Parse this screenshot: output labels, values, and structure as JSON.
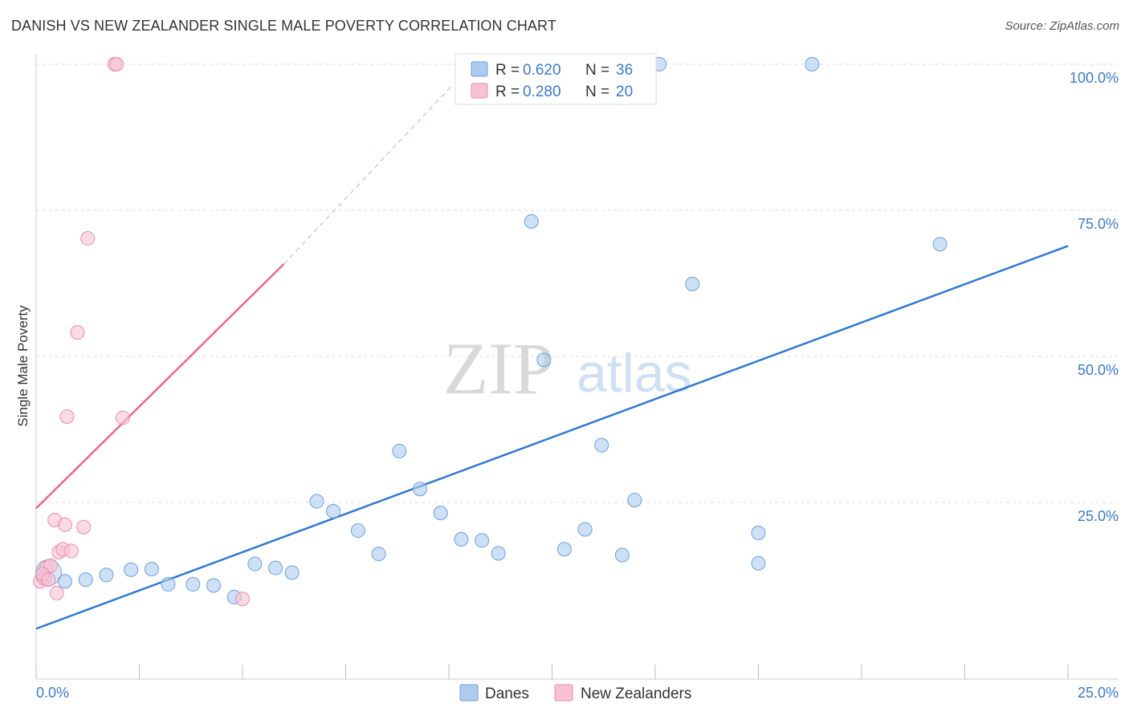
{
  "header": {
    "title": "DANISH VS NEW ZEALANDER SINGLE MALE POVERTY CORRELATION CHART",
    "source": "Source: ZipAtlas.com"
  },
  "watermark": {
    "zip": "ZIP",
    "atlas": "atlas"
  },
  "colors": {
    "danes_fill": "#aecbef",
    "danes_stroke": "#6f9fdc",
    "danes_line": "#2f78d0",
    "nz_fill": "#f8c2d3",
    "nz_stroke": "#ea8eab",
    "nz_line": "#e8678f",
    "tick_text": "#3d79c9",
    "grid": "#dddddd"
  },
  "chart_data": {
    "type": "scatter",
    "title": "DANISH VS NEW ZEALANDER SINGLE MALE POVERTY CORRELATION CHART",
    "xlabel": "",
    "ylabel": "Single Male Poverty",
    "xlim": [
      0,
      25
    ],
    "ylim": [
      0,
      100
    ],
    "x_tick_labels": [
      "0.0%",
      "25.0%"
    ],
    "y_ticks": [
      25,
      50,
      75,
      100
    ],
    "y_tick_labels": [
      "25.0%",
      "50.0%",
      "75.0%",
      "100.0%"
    ],
    "grid": true,
    "legend": {
      "position": "top-center",
      "entries": [
        {
          "series": "Danes",
          "r_label": "R =",
          "r": "0.620",
          "n_label": "N =",
          "n": "36"
        },
        {
          "series": "New Zealanders",
          "r_label": "R =",
          "r": "0.280",
          "n_label": "N =",
          "n": "20"
        }
      ]
    },
    "series": [
      {
        "name": "Danes",
        "points": [
          {
            "x": 0.15,
            "y": 12.5
          },
          {
            "x": 0.7,
            "y": 11.5
          },
          {
            "x": 1.2,
            "y": 11.8
          },
          {
            "x": 1.7,
            "y": 12.6
          },
          {
            "x": 2.3,
            "y": 13.5
          },
          {
            "x": 2.8,
            "y": 13.6
          },
          {
            "x": 3.2,
            "y": 11.0
          },
          {
            "x": 3.8,
            "y": 11.0
          },
          {
            "x": 4.3,
            "y": 10.8
          },
          {
            "x": 4.8,
            "y": 8.8
          },
          {
            "x": 5.3,
            "y": 14.5
          },
          {
            "x": 5.8,
            "y": 13.8
          },
          {
            "x": 6.2,
            "y": 13.0
          },
          {
            "x": 6.8,
            "y": 25.2
          },
          {
            "x": 7.2,
            "y": 23.5
          },
          {
            "x": 7.8,
            "y": 20.2
          },
          {
            "x": 8.3,
            "y": 16.2
          },
          {
            "x": 8.8,
            "y": 33.8
          },
          {
            "x": 9.3,
            "y": 27.3
          },
          {
            "x": 9.8,
            "y": 23.2
          },
          {
            "x": 10.3,
            "y": 18.7
          },
          {
            "x": 10.8,
            "y": 18.5
          },
          {
            "x": 11.2,
            "y": 16.3
          },
          {
            "x": 12.0,
            "y": 73.1
          },
          {
            "x": 12.3,
            "y": 49.4
          },
          {
            "x": 12.8,
            "y": 17.0
          },
          {
            "x": 13.3,
            "y": 20.4
          },
          {
            "x": 13.7,
            "y": 34.8
          },
          {
            "x": 14.2,
            "y": 16.0
          },
          {
            "x": 14.5,
            "y": 25.4
          },
          {
            "x": 15.1,
            "y": 100.0
          },
          {
            "x": 15.9,
            "y": 62.4
          },
          {
            "x": 17.5,
            "y": 19.8
          },
          {
            "x": 17.5,
            "y": 14.6
          },
          {
            "x": 18.8,
            "y": 100.0
          },
          {
            "x": 21.9,
            "y": 69.2
          }
        ],
        "trend": {
          "x0": 0,
          "y0": 3.4,
          "x1": 25,
          "y1": 68.9
        }
      },
      {
        "name": "New Zealanders",
        "points": [
          {
            "x": 0.1,
            "y": 11.5
          },
          {
            "x": 0.2,
            "y": 12.0
          },
          {
            "x": 0.25,
            "y": 13.8
          },
          {
            "x": 0.35,
            "y": 14.2
          },
          {
            "x": 0.45,
            "y": 22.0
          },
          {
            "x": 0.5,
            "y": 9.5
          },
          {
            "x": 0.55,
            "y": 16.5
          },
          {
            "x": 0.65,
            "y": 17.0
          },
          {
            "x": 0.7,
            "y": 21.2
          },
          {
            "x": 0.75,
            "y": 39.7
          },
          {
            "x": 0.85,
            "y": 16.7
          },
          {
            "x": 1.0,
            "y": 54.1
          },
          {
            "x": 1.15,
            "y": 20.8
          },
          {
            "x": 1.25,
            "y": 70.2
          },
          {
            "x": 1.9,
            "y": 100.0
          },
          {
            "x": 1.95,
            "y": 100.0
          },
          {
            "x": 2.1,
            "y": 39.5
          },
          {
            "x": 5.0,
            "y": 8.5
          },
          {
            "x": 0.15,
            "y": 12.8
          },
          {
            "x": 0.3,
            "y": 11.8
          }
        ],
        "trend": {
          "x0": 0,
          "y0": 24.0,
          "x1": 6.0,
          "y1": 65.8
        },
        "trend_extension": {
          "x0": 6.0,
          "y0": 65.8,
          "x1": 10.1,
          "y1": 96.5
        }
      }
    ]
  },
  "bottom_legend": [
    {
      "label": "Danes"
    },
    {
      "label": "New Zealanders"
    }
  ]
}
